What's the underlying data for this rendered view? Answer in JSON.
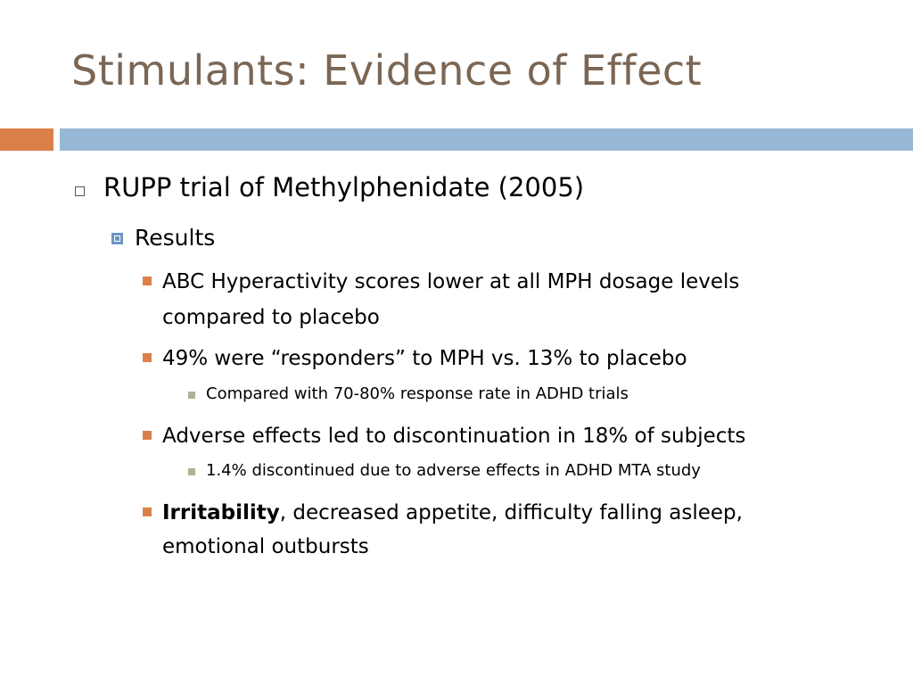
{
  "slide": {
    "title": "Stimulants: Evidence of Effect",
    "colors": {
      "title": "#7b6654",
      "band_orange": "#dc8049",
      "band_blue": "#97b8d5",
      "bullet_level2": "#6e95c2",
      "bullet_level3": "#dc8049",
      "bullet_level4": "#a8b596"
    },
    "bullets": {
      "level1": {
        "text": "RUPP trial of Methylphenidate (2005)",
        "icon": "hollow-square-bullet-icon"
      },
      "level2": {
        "text": "Results",
        "icon": "framed-square-bullet-icon"
      },
      "item1": {
        "line1": "ABC Hyperactivity scores lower at all MPH dosage levels",
        "line2": "compared to placebo"
      },
      "item2": {
        "text": "49% were “responders” to MPH vs. 13% to placebo",
        "sub": "Compared with 70-80% response rate in ADHD trials"
      },
      "item3": {
        "text": "Adverse effects led to discontinuation in 18% of subjects",
        "sub": "1.4% discontinued due to adverse effects in ADHD MTA study"
      },
      "item4": {
        "bold": "Irritability",
        "rest": ", decreased appetite, difficulty falling asleep,",
        "line2": "emotional outbursts"
      }
    }
  }
}
